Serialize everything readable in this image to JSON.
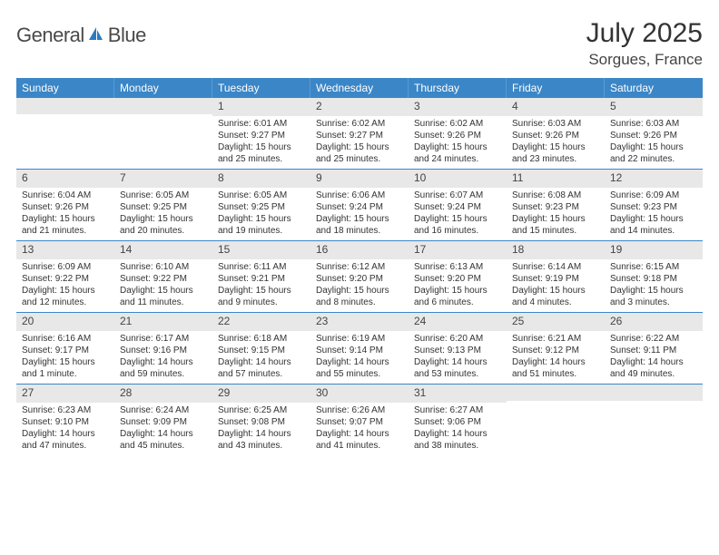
{
  "logo": {
    "general": "General",
    "blue": "Blue"
  },
  "title": "July 2025",
  "location": "Sorgues, France",
  "headers": [
    "Sunday",
    "Monday",
    "Tuesday",
    "Wednesday",
    "Thursday",
    "Friday",
    "Saturday"
  ],
  "colors": {
    "header_bg": "#3b86c7",
    "header_text": "#ffffff",
    "daynum_bg": "#e8e8e8",
    "week_border": "#3b86c7",
    "logo_blue": "#2b7bbf",
    "text": "#333333",
    "bg": "#ffffff"
  },
  "weeks": [
    [
      null,
      null,
      {
        "n": "1",
        "sr": "Sunrise: 6:01 AM",
        "ss": "Sunset: 9:27 PM",
        "d1": "Daylight: 15 hours",
        "d2": "and 25 minutes."
      },
      {
        "n": "2",
        "sr": "Sunrise: 6:02 AM",
        "ss": "Sunset: 9:27 PM",
        "d1": "Daylight: 15 hours",
        "d2": "and 25 minutes."
      },
      {
        "n": "3",
        "sr": "Sunrise: 6:02 AM",
        "ss": "Sunset: 9:26 PM",
        "d1": "Daylight: 15 hours",
        "d2": "and 24 minutes."
      },
      {
        "n": "4",
        "sr": "Sunrise: 6:03 AM",
        "ss": "Sunset: 9:26 PM",
        "d1": "Daylight: 15 hours",
        "d2": "and 23 minutes."
      },
      {
        "n": "5",
        "sr": "Sunrise: 6:03 AM",
        "ss": "Sunset: 9:26 PM",
        "d1": "Daylight: 15 hours",
        "d2": "and 22 minutes."
      }
    ],
    [
      {
        "n": "6",
        "sr": "Sunrise: 6:04 AM",
        "ss": "Sunset: 9:26 PM",
        "d1": "Daylight: 15 hours",
        "d2": "and 21 minutes."
      },
      {
        "n": "7",
        "sr": "Sunrise: 6:05 AM",
        "ss": "Sunset: 9:25 PM",
        "d1": "Daylight: 15 hours",
        "d2": "and 20 minutes."
      },
      {
        "n": "8",
        "sr": "Sunrise: 6:05 AM",
        "ss": "Sunset: 9:25 PM",
        "d1": "Daylight: 15 hours",
        "d2": "and 19 minutes."
      },
      {
        "n": "9",
        "sr": "Sunrise: 6:06 AM",
        "ss": "Sunset: 9:24 PM",
        "d1": "Daylight: 15 hours",
        "d2": "and 18 minutes."
      },
      {
        "n": "10",
        "sr": "Sunrise: 6:07 AM",
        "ss": "Sunset: 9:24 PM",
        "d1": "Daylight: 15 hours",
        "d2": "and 16 minutes."
      },
      {
        "n": "11",
        "sr": "Sunrise: 6:08 AM",
        "ss": "Sunset: 9:23 PM",
        "d1": "Daylight: 15 hours",
        "d2": "and 15 minutes."
      },
      {
        "n": "12",
        "sr": "Sunrise: 6:09 AM",
        "ss": "Sunset: 9:23 PM",
        "d1": "Daylight: 15 hours",
        "d2": "and 14 minutes."
      }
    ],
    [
      {
        "n": "13",
        "sr": "Sunrise: 6:09 AM",
        "ss": "Sunset: 9:22 PM",
        "d1": "Daylight: 15 hours",
        "d2": "and 12 minutes."
      },
      {
        "n": "14",
        "sr": "Sunrise: 6:10 AM",
        "ss": "Sunset: 9:22 PM",
        "d1": "Daylight: 15 hours",
        "d2": "and 11 minutes."
      },
      {
        "n": "15",
        "sr": "Sunrise: 6:11 AM",
        "ss": "Sunset: 9:21 PM",
        "d1": "Daylight: 15 hours",
        "d2": "and 9 minutes."
      },
      {
        "n": "16",
        "sr": "Sunrise: 6:12 AM",
        "ss": "Sunset: 9:20 PM",
        "d1": "Daylight: 15 hours",
        "d2": "and 8 minutes."
      },
      {
        "n": "17",
        "sr": "Sunrise: 6:13 AM",
        "ss": "Sunset: 9:20 PM",
        "d1": "Daylight: 15 hours",
        "d2": "and 6 minutes."
      },
      {
        "n": "18",
        "sr": "Sunrise: 6:14 AM",
        "ss": "Sunset: 9:19 PM",
        "d1": "Daylight: 15 hours",
        "d2": "and 4 minutes."
      },
      {
        "n": "19",
        "sr": "Sunrise: 6:15 AM",
        "ss": "Sunset: 9:18 PM",
        "d1": "Daylight: 15 hours",
        "d2": "and 3 minutes."
      }
    ],
    [
      {
        "n": "20",
        "sr": "Sunrise: 6:16 AM",
        "ss": "Sunset: 9:17 PM",
        "d1": "Daylight: 15 hours",
        "d2": "and 1 minute."
      },
      {
        "n": "21",
        "sr": "Sunrise: 6:17 AM",
        "ss": "Sunset: 9:16 PM",
        "d1": "Daylight: 14 hours",
        "d2": "and 59 minutes."
      },
      {
        "n": "22",
        "sr": "Sunrise: 6:18 AM",
        "ss": "Sunset: 9:15 PM",
        "d1": "Daylight: 14 hours",
        "d2": "and 57 minutes."
      },
      {
        "n": "23",
        "sr": "Sunrise: 6:19 AM",
        "ss": "Sunset: 9:14 PM",
        "d1": "Daylight: 14 hours",
        "d2": "and 55 minutes."
      },
      {
        "n": "24",
        "sr": "Sunrise: 6:20 AM",
        "ss": "Sunset: 9:13 PM",
        "d1": "Daylight: 14 hours",
        "d2": "and 53 minutes."
      },
      {
        "n": "25",
        "sr": "Sunrise: 6:21 AM",
        "ss": "Sunset: 9:12 PM",
        "d1": "Daylight: 14 hours",
        "d2": "and 51 minutes."
      },
      {
        "n": "26",
        "sr": "Sunrise: 6:22 AM",
        "ss": "Sunset: 9:11 PM",
        "d1": "Daylight: 14 hours",
        "d2": "and 49 minutes."
      }
    ],
    [
      {
        "n": "27",
        "sr": "Sunrise: 6:23 AM",
        "ss": "Sunset: 9:10 PM",
        "d1": "Daylight: 14 hours",
        "d2": "and 47 minutes."
      },
      {
        "n": "28",
        "sr": "Sunrise: 6:24 AM",
        "ss": "Sunset: 9:09 PM",
        "d1": "Daylight: 14 hours",
        "d2": "and 45 minutes."
      },
      {
        "n": "29",
        "sr": "Sunrise: 6:25 AM",
        "ss": "Sunset: 9:08 PM",
        "d1": "Daylight: 14 hours",
        "d2": "and 43 minutes."
      },
      {
        "n": "30",
        "sr": "Sunrise: 6:26 AM",
        "ss": "Sunset: 9:07 PM",
        "d1": "Daylight: 14 hours",
        "d2": "and 41 minutes."
      },
      {
        "n": "31",
        "sr": "Sunrise: 6:27 AM",
        "ss": "Sunset: 9:06 PM",
        "d1": "Daylight: 14 hours",
        "d2": "and 38 minutes."
      },
      null,
      null
    ]
  ]
}
